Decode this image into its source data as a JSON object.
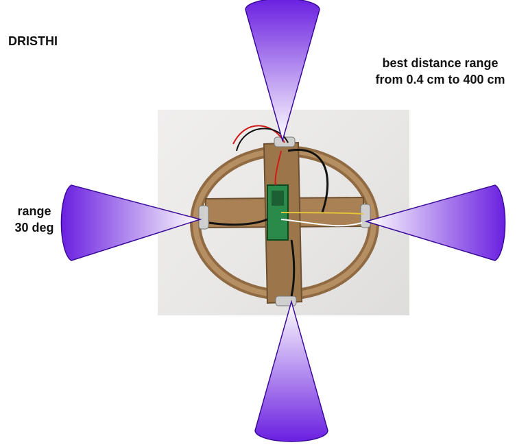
{
  "title": "DRISTHI",
  "distance_note": {
    "line1": "best distance range",
    "line2": "from 0.4 cm to 400 cm"
  },
  "angle_note": {
    "line1": "range",
    "line2": "30 deg"
  },
  "photo": {
    "subject": "head-mounted ultrasonic sensor ring with microcontroller"
  },
  "colors": {
    "beam_dark": "#6a1fe0",
    "beam_light": "#ffffff",
    "beam_stroke": "#3a0a9a",
    "cardboard": "#a07c52",
    "wire_black": "#111111",
    "wire_red": "#d11a1a",
    "board_green": "#2a8a4a"
  },
  "beams": [
    {
      "direction": "up",
      "icon": "sensor-beam-up"
    },
    {
      "direction": "down",
      "icon": "sensor-beam-down"
    },
    {
      "direction": "left",
      "icon": "sensor-beam-left"
    },
    {
      "direction": "right",
      "icon": "sensor-beam-right"
    }
  ]
}
